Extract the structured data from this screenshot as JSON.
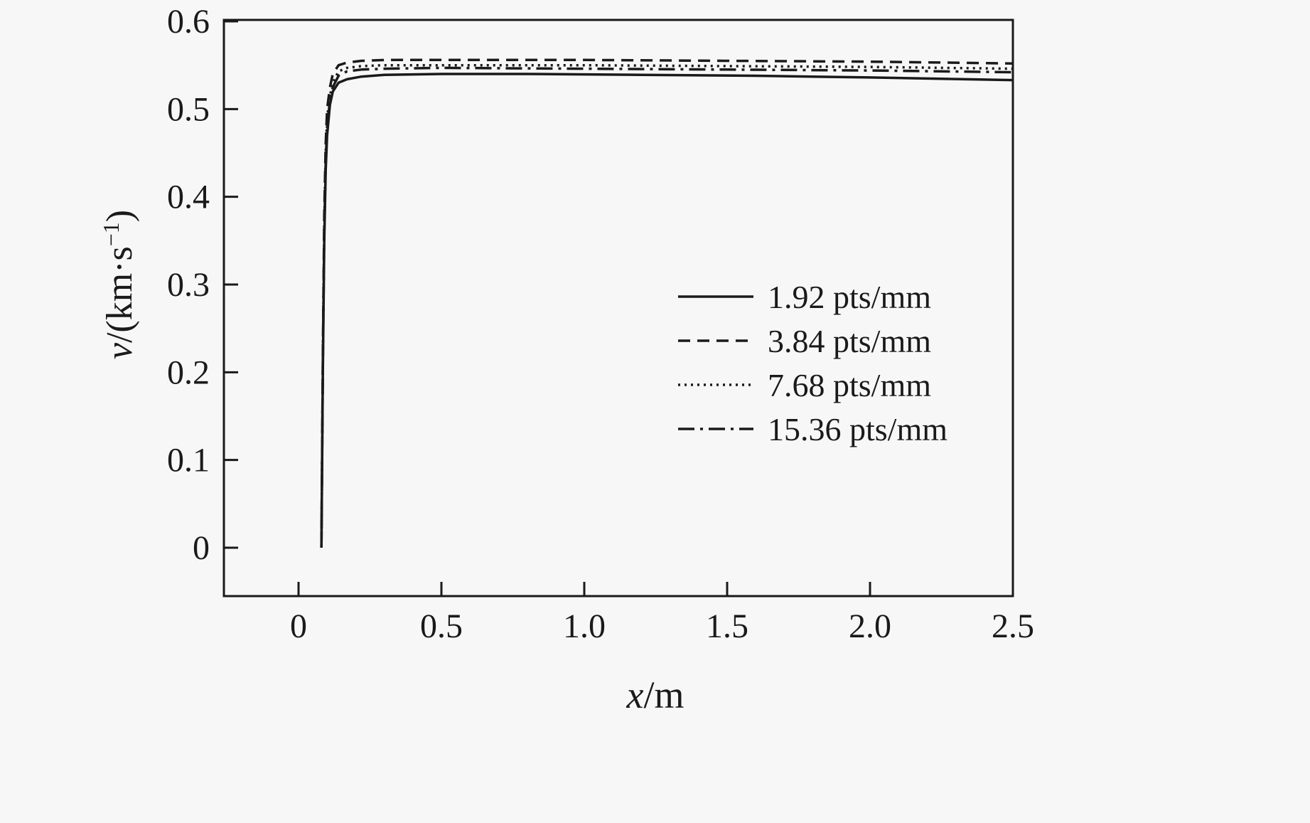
{
  "figure": {
    "background": "#f7f7f7",
    "line_color": "#1a1a1a"
  },
  "axis": {
    "x_label_italic": "x",
    "x_label_rest": "/m",
    "y_label_italic": "v",
    "y_label_rest": "/(km·s",
    "y_label_sup": "−1",
    "y_label_close": ")"
  },
  "chart_data": {
    "type": "line",
    "title": "",
    "xlabel": "x/m",
    "ylabel": "v/(km·s⁻¹)",
    "xlim": [
      -0.26,
      2.5
    ],
    "ylim": [
      -0.055,
      0.6
    ],
    "x_ticks": [
      0,
      0.5,
      1.0,
      1.5,
      2.0,
      2.5
    ],
    "x_tick_labels": [
      "0",
      "0.5",
      "1.0",
      "1.5",
      "2.0",
      "2.5"
    ],
    "y_ticks": [
      0,
      0.1,
      0.2,
      0.3,
      0.4,
      0.5,
      0.6
    ],
    "y_tick_labels": [
      "0",
      "0.1",
      "0.2",
      "0.3",
      "0.4",
      "0.5",
      "0.6"
    ],
    "grid": false,
    "legend_position": "center-right",
    "series": [
      {
        "name": "1.92 pts/mm",
        "style": "solid",
        "points": [
          [
            0.08,
            0
          ],
          [
            0.085,
            0.2
          ],
          [
            0.09,
            0.35
          ],
          [
            0.095,
            0.43
          ],
          [
            0.1,
            0.47
          ],
          [
            0.11,
            0.505
          ],
          [
            0.12,
            0.52
          ],
          [
            0.14,
            0.53
          ],
          [
            0.17,
            0.534
          ],
          [
            0.22,
            0.537
          ],
          [
            0.3,
            0.539
          ],
          [
            0.5,
            0.54
          ],
          [
            0.8,
            0.54
          ],
          [
            1.2,
            0.539
          ],
          [
            1.6,
            0.538
          ],
          [
            2.0,
            0.536
          ],
          [
            2.5,
            0.533
          ]
        ]
      },
      {
        "name": "3.84 pts/mm",
        "style": "dashed",
        "points": [
          [
            0.08,
            0
          ],
          [
            0.085,
            0.22
          ],
          [
            0.09,
            0.38
          ],
          [
            0.095,
            0.46
          ],
          [
            0.1,
            0.5
          ],
          [
            0.11,
            0.525
          ],
          [
            0.12,
            0.54
          ],
          [
            0.14,
            0.55
          ],
          [
            0.17,
            0.553
          ],
          [
            0.22,
            0.555
          ],
          [
            0.3,
            0.556
          ],
          [
            0.5,
            0.556
          ],
          [
            1.0,
            0.556
          ],
          [
            1.5,
            0.555
          ],
          [
            2.0,
            0.554
          ],
          [
            2.5,
            0.552
          ]
        ]
      },
      {
        "name": "7.68 pts/mm",
        "style": "dotted",
        "points": [
          [
            0.08,
            0
          ],
          [
            0.085,
            0.21
          ],
          [
            0.09,
            0.37
          ],
          [
            0.095,
            0.45
          ],
          [
            0.1,
            0.49
          ],
          [
            0.11,
            0.515
          ],
          [
            0.12,
            0.53
          ],
          [
            0.14,
            0.543
          ],
          [
            0.17,
            0.547
          ],
          [
            0.22,
            0.549
          ],
          [
            0.3,
            0.55
          ],
          [
            0.5,
            0.55
          ],
          [
            1.0,
            0.55
          ],
          [
            1.5,
            0.549
          ],
          [
            2.0,
            0.548
          ],
          [
            2.5,
            0.546
          ]
        ]
      },
      {
        "name": "15.36 pts/mm",
        "style": "dashdot",
        "points": [
          [
            0.08,
            0
          ],
          [
            0.085,
            0.21
          ],
          [
            0.09,
            0.36
          ],
          [
            0.095,
            0.44
          ],
          [
            0.1,
            0.48
          ],
          [
            0.11,
            0.51
          ],
          [
            0.12,
            0.525
          ],
          [
            0.14,
            0.538
          ],
          [
            0.17,
            0.543
          ],
          [
            0.22,
            0.545
          ],
          [
            0.3,
            0.546
          ],
          [
            0.5,
            0.547
          ],
          [
            1.0,
            0.546
          ],
          [
            1.5,
            0.545
          ],
          [
            2.0,
            0.544
          ],
          [
            2.5,
            0.542
          ]
        ]
      }
    ]
  }
}
